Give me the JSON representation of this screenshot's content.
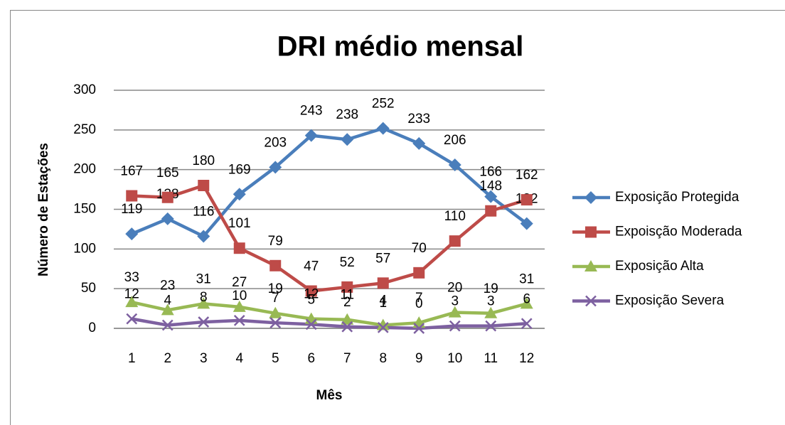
{
  "chart_data": {
    "type": "line",
    "title": "DRI médio mensal",
    "x_label": "Mês",
    "y_label": "Número de Estações",
    "categories": [
      "1",
      "2",
      "3",
      "4",
      "5",
      "6",
      "7",
      "8",
      "9",
      "10",
      "11",
      "12"
    ],
    "series": [
      {
        "name": "Exposição Protegida",
        "color": "#4a7ebb",
        "marker": "diamond",
        "values": [
          119,
          138,
          116,
          169,
          203,
          243,
          238,
          252,
          233,
          206,
          166,
          132
        ]
      },
      {
        "name": "Expoisção Moderada",
        "color": "#be4b48",
        "marker": "square",
        "values": [
          167,
          165,
          180,
          101,
          79,
          47,
          52,
          57,
          70,
          110,
          148,
          162
        ]
      },
      {
        "name": "Exposição Alta",
        "color": "#98b954",
        "marker": "triangle",
        "values": [
          33,
          23,
          31,
          27,
          19,
          12,
          11,
          4,
          7,
          20,
          19,
          31
        ]
      },
      {
        "name": "Exposição Severa",
        "color": "#7d60a0",
        "marker": "x",
        "values": [
          12,
          4,
          8,
          10,
          7,
          5,
          2,
          1,
          0,
          3,
          3,
          6
        ]
      }
    ],
    "ylim": [
      0,
      300
    ],
    "yticks": [
      0,
      50,
      100,
      150,
      200,
      250,
      300
    ],
    "grid": true,
    "legend": "right"
  }
}
